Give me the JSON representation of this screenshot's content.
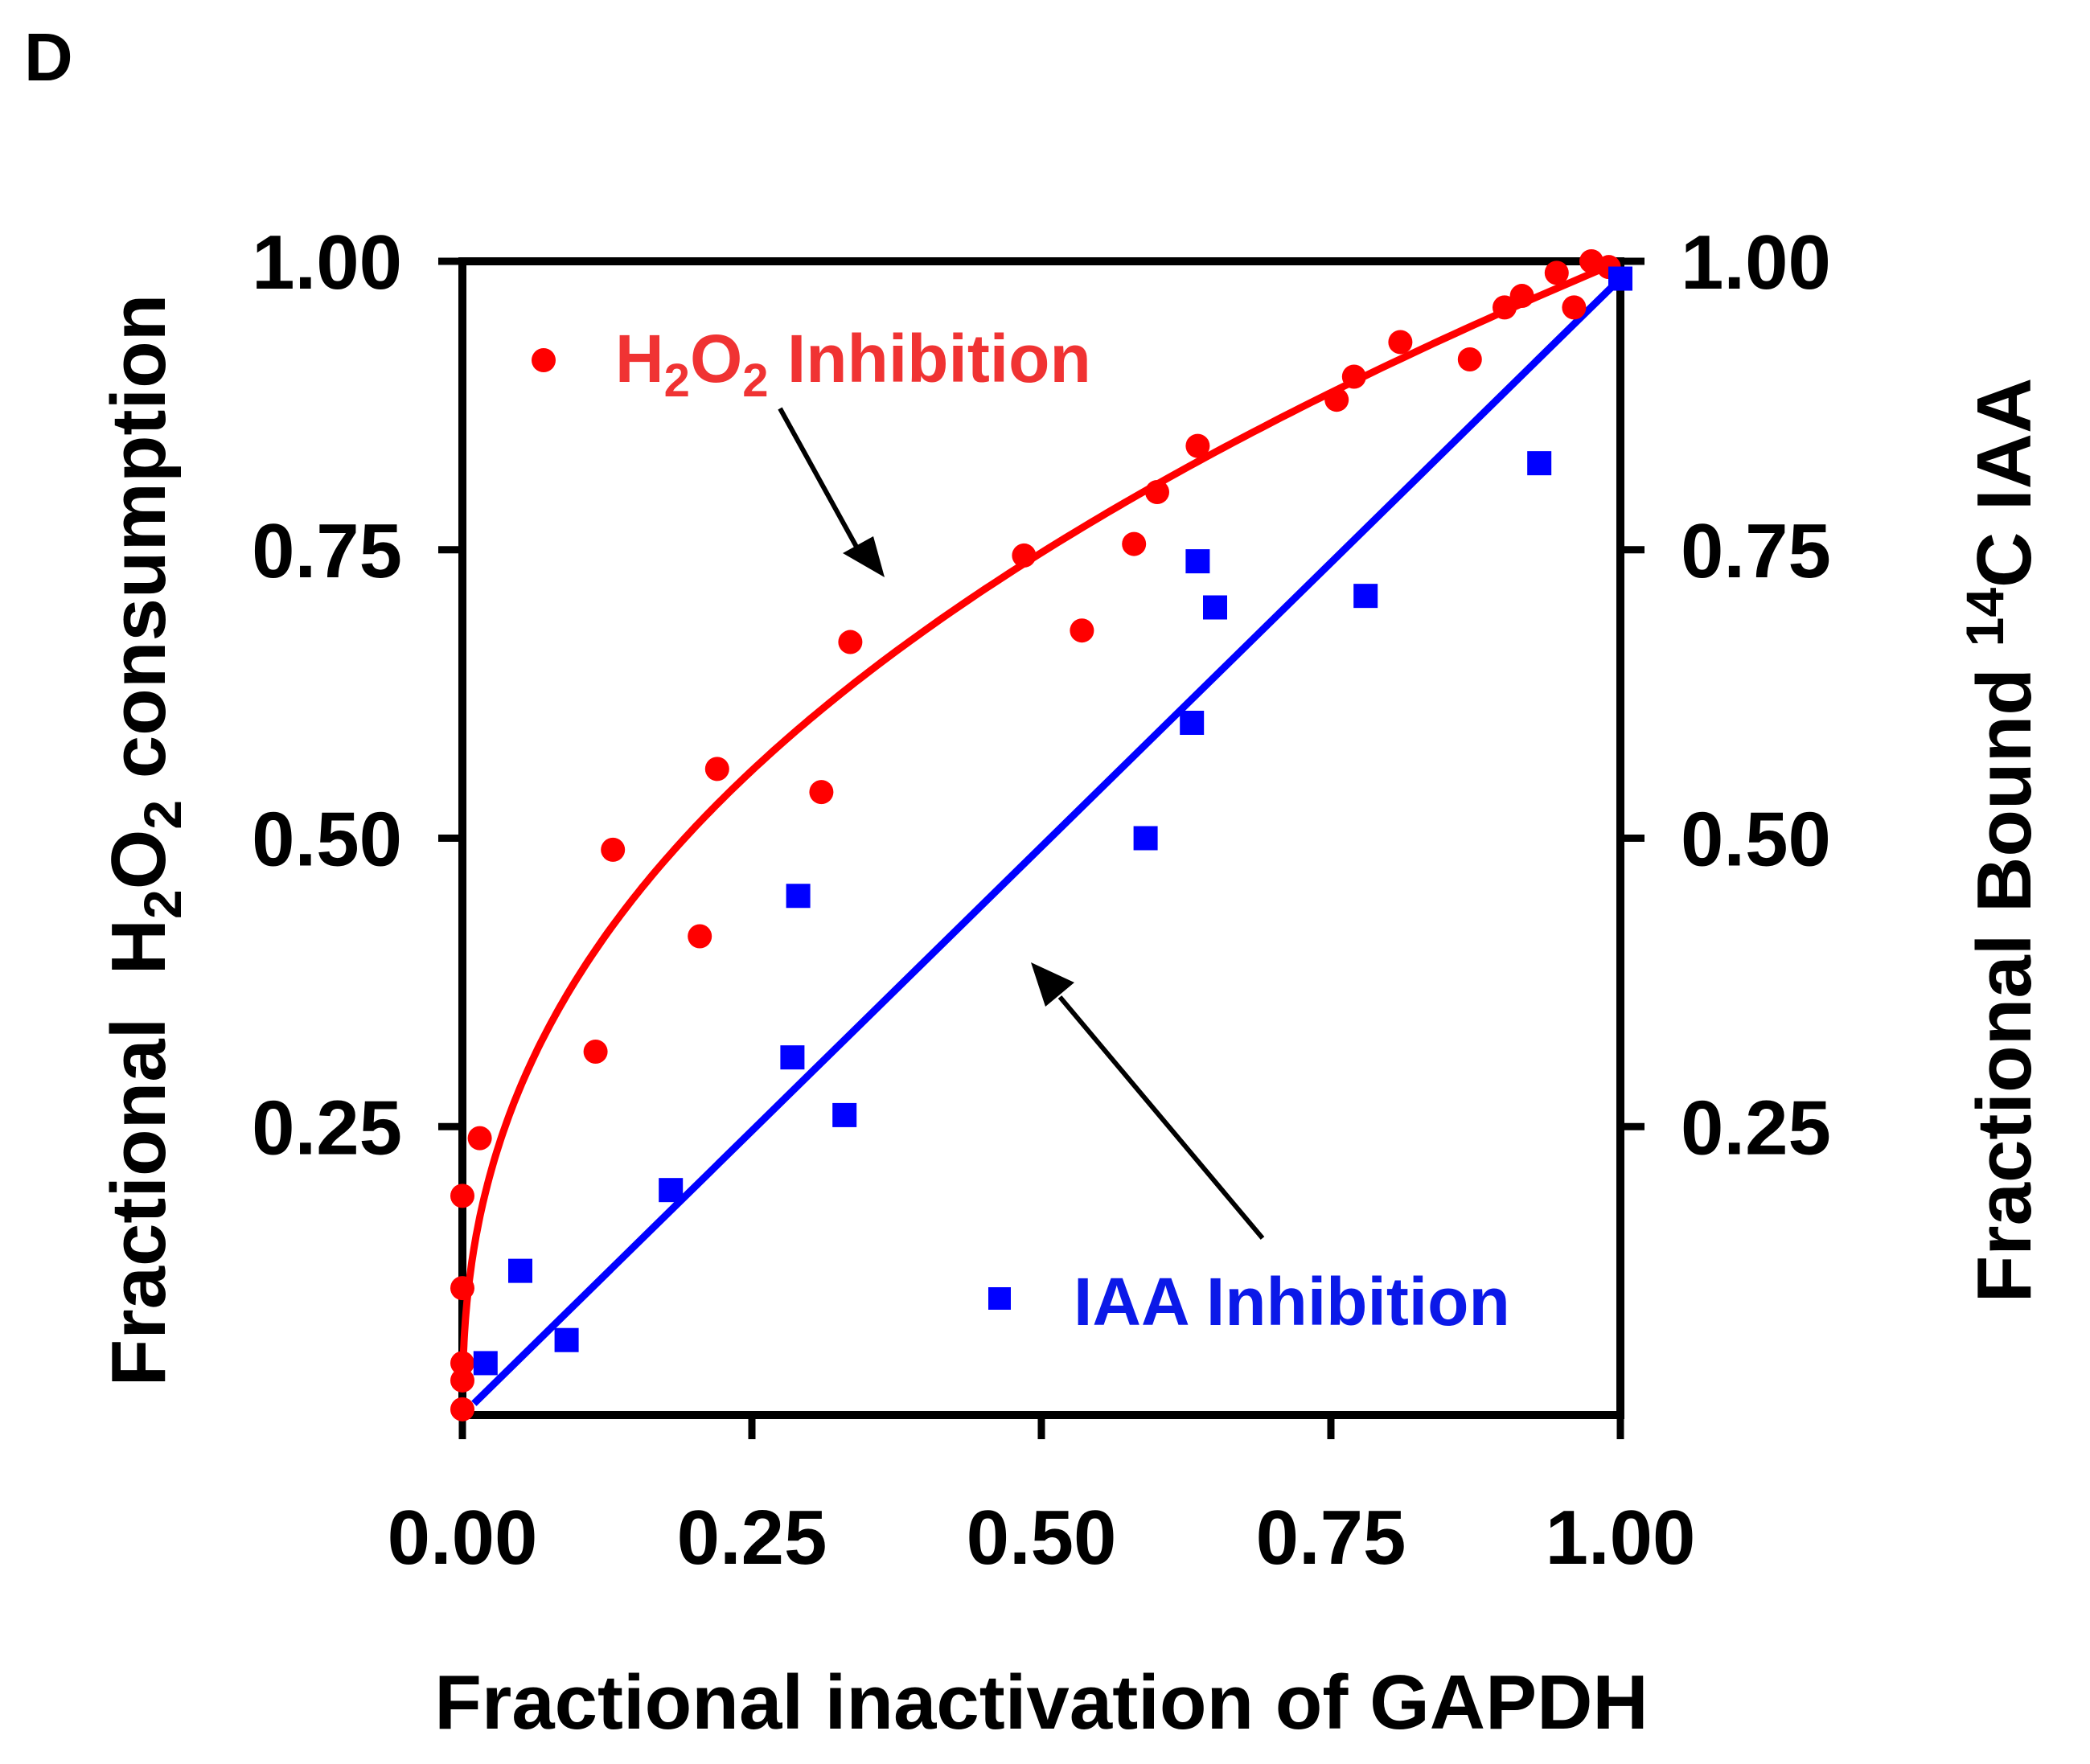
{
  "panel_label": "D",
  "chart_data": {
    "type": "scatter",
    "title": "",
    "xlabel": "Fractional inactivation of GAPDH",
    "ylabel_left": {
      "prefix": "Fractional  H",
      "sub": "2",
      "mid": "O",
      "sub2": "2",
      "suffix": " consumption"
    },
    "ylabel_right": {
      "prefix": "Fractional Bound ",
      "sup": "14",
      "suffix": "C IAA"
    },
    "xlim": [
      0,
      1
    ],
    "ylim": [
      0,
      1
    ],
    "x_ticks": [
      0,
      0.25,
      0.5,
      0.75,
      1
    ],
    "x_tick_labels": [
      "0.00",
      "0.25",
      "0.50",
      "0.75",
      "1.00"
    ],
    "y_left_ticks": [
      0.25,
      0.5,
      0.75,
      1
    ],
    "y_left_tick_labels": [
      "0.25",
      "0.50",
      "0.75",
      "1.00"
    ],
    "y_right_ticks": [
      0.25,
      0.5,
      0.75,
      1
    ],
    "y_right_tick_labels": [
      "0.25",
      "0.50",
      "0.75",
      "1.00"
    ],
    "series": [
      {
        "name": "H2O2 Inhibition",
        "label_main": "H",
        "label_sub1": "2",
        "label_mid": "O",
        "label_sub2": "2",
        "label_tail": " Inhibition",
        "color": "#ff0000",
        "marker": "circle",
        "axis": "left",
        "points": [
          [
            0.0,
            0.005
          ],
          [
            0.0,
            0.03
          ],
          [
            0.0,
            0.045
          ],
          [
            0.0,
            0.11
          ],
          [
            0.0,
            0.19
          ],
          [
            0.015,
            0.24
          ],
          [
            0.115,
            0.315
          ],
          [
            0.13,
            0.49
          ],
          [
            0.205,
            0.415
          ],
          [
            0.22,
            0.56
          ],
          [
            0.31,
            0.54
          ],
          [
            0.335,
            0.67
          ],
          [
            0.485,
            0.745
          ],
          [
            0.535,
            0.68
          ],
          [
            0.58,
            0.755
          ],
          [
            0.6,
            0.8
          ],
          [
            0.635,
            0.84
          ],
          [
            0.755,
            0.88
          ],
          [
            0.77,
            0.9
          ],
          [
            0.81,
            0.93
          ],
          [
            0.87,
            0.915
          ],
          [
            0.9,
            0.96
          ],
          [
            0.915,
            0.97
          ],
          [
            0.945,
            0.99
          ],
          [
            0.96,
            0.96
          ],
          [
            0.975,
            1.0
          ],
          [
            0.99,
            0.995
          ]
        ],
        "fit": {
          "type": "power",
          "a": 1.0,
          "b": 0.42
        }
      },
      {
        "name": "IAA Inhibition",
        "label_main": "IAA Inhibition",
        "color": "#0000ff",
        "marker": "square",
        "axis": "right",
        "points": [
          [
            0.02,
            0.045
          ],
          [
            0.05,
            0.125
          ],
          [
            0.09,
            0.065
          ],
          [
            0.18,
            0.195
          ],
          [
            0.285,
            0.31
          ],
          [
            0.29,
            0.45
          ],
          [
            0.33,
            0.26
          ],
          [
            0.59,
            0.5
          ],
          [
            0.63,
            0.6
          ],
          [
            0.635,
            0.74
          ],
          [
            0.65,
            0.7
          ],
          [
            0.78,
            0.71
          ],
          [
            0.93,
            0.825
          ],
          [
            1.0,
            0.985
          ]
        ],
        "fit": {
          "type": "linear",
          "x0": 0.01,
          "y0": 0.01,
          "x1": 1.0,
          "y1": 0.985
        }
      }
    ]
  }
}
